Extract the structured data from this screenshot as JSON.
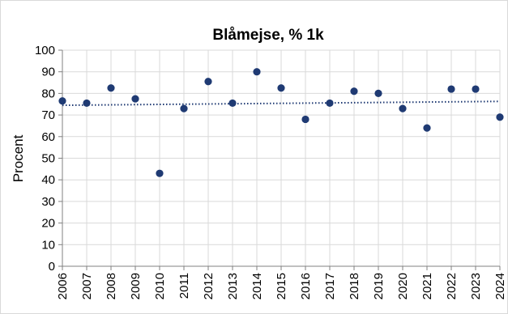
{
  "chart_data": {
    "type": "scatter",
    "title": "Blåmejse, % 1k",
    "xlabel": "",
    "ylabel": "Procent",
    "x": [
      "2006",
      "2007",
      "2008",
      "2009",
      "2010",
      "2011",
      "2012",
      "2013",
      "2014",
      "2015",
      "2016",
      "2017",
      "2018",
      "2019",
      "2020",
      "2021",
      "2022",
      "2023",
      "2024"
    ],
    "series": [
      {
        "values": [
          76.5,
          75.5,
          82.5,
          77.5,
          43,
          73,
          85.5,
          75.5,
          90,
          82.5,
          68,
          75.5,
          81,
          80,
          73,
          64,
          82,
          82,
          69
        ]
      }
    ],
    "trendline": {
      "style": "dotted",
      "start": 74.5,
      "end": 76.3
    },
    "yticks": [
      0,
      10,
      20,
      30,
      40,
      50,
      60,
      70,
      80,
      90,
      100
    ],
    "ylim": [
      0,
      100
    ],
    "grid": true,
    "legend": "none",
    "colors": {
      "marker": "#1f3a73",
      "trend": "#1f3a73",
      "grid": "#d9d9d9",
      "axis": "#808080"
    }
  }
}
